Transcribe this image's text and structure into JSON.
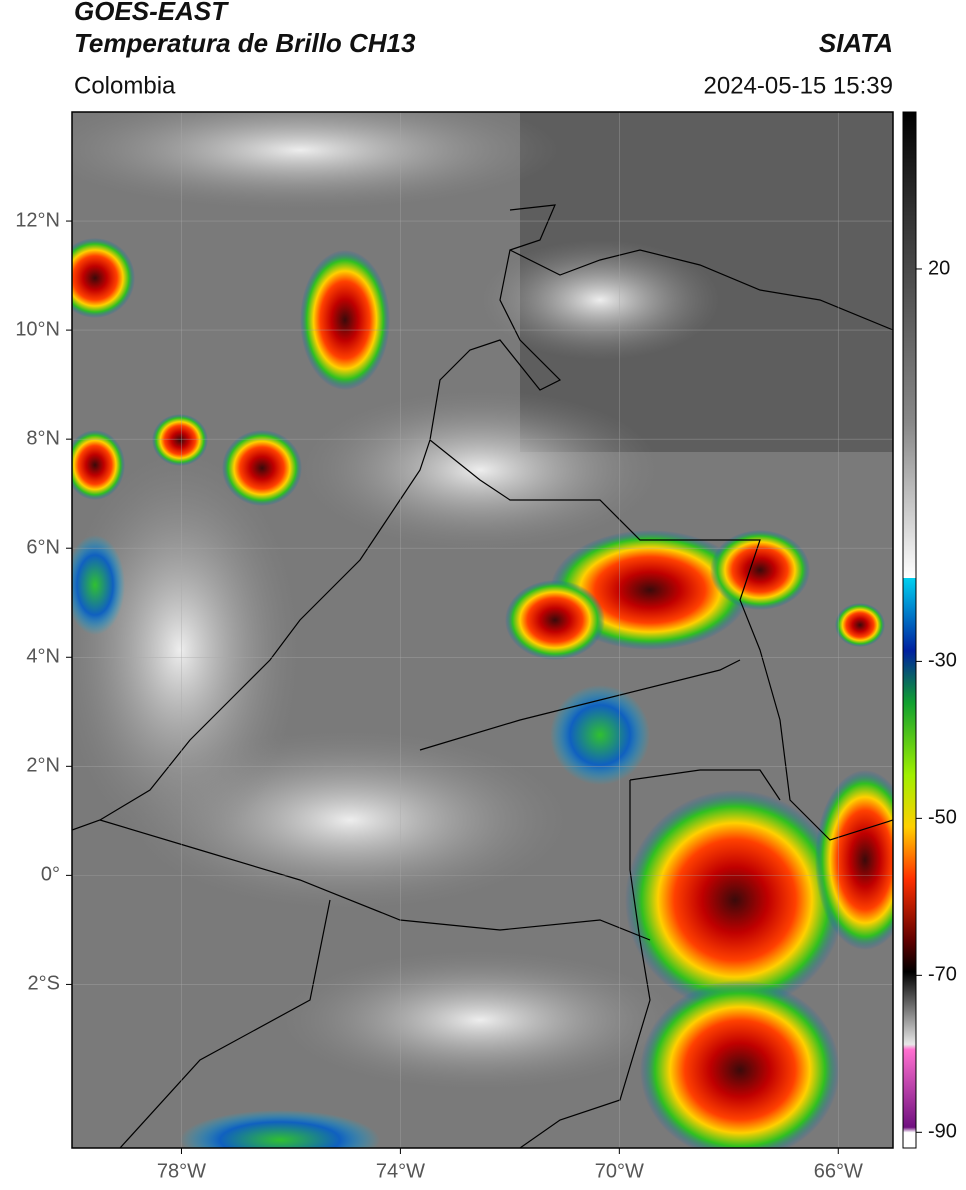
{
  "header": {
    "title_line1": "GOES-EAST",
    "title_line2": "Temperatura de Brillo CH13",
    "region": "Colombia",
    "source": "SIATA",
    "timestamp": "2024-05-15 15:39"
  },
  "map": {
    "latlim": [
      -5,
      14
    ],
    "lonlim": [
      -80,
      -65
    ],
    "lat_ticks": [
      {
        "value": 12,
        "label": "12°N"
      },
      {
        "value": 10,
        "label": "10°N"
      },
      {
        "value": 8,
        "label": "8°N"
      },
      {
        "value": 6,
        "label": "6°N"
      },
      {
        "value": 4,
        "label": "4°N"
      },
      {
        "value": 2,
        "label": "2°N"
      },
      {
        "value": 0,
        "label": "0°"
      },
      {
        "value": -2,
        "label": "2°S"
      }
    ],
    "lon_ticks": [
      {
        "value": -78,
        "label": "78°W"
      },
      {
        "value": -74,
        "label": "74°W"
      },
      {
        "value": -70,
        "label": "70°W"
      },
      {
        "value": -66,
        "label": "66°W"
      }
    ]
  },
  "colorbar": {
    "lim": [
      -92,
      40
    ],
    "ticks": [
      20,
      -30,
      -50,
      -70,
      -90
    ]
  }
}
